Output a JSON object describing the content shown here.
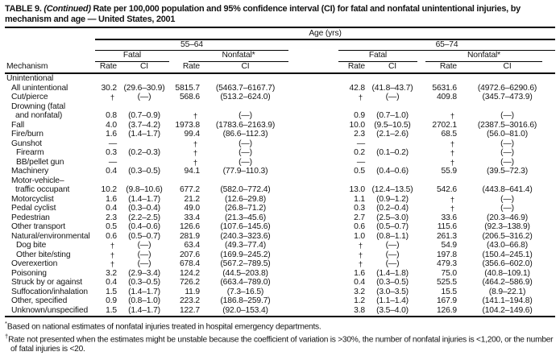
{
  "title": {
    "prefix": "TABLE 9. ",
    "continued": "(Continued)",
    "rest": " Rate per 100,000 population and 95% confidence interval (CI) for fatal and nonfatal unintentional injuries, by mechanism and age — United States, 2001"
  },
  "header": {
    "age_label": "Age (yrs)",
    "mechanism_label": "Mechanism",
    "group_1": "55–64",
    "group_2": "65–74",
    "fatal_label": "Fatal",
    "nonfatal_label": "Nonfatal*",
    "rate_label": "Rate",
    "ci_label": "CI"
  },
  "table": {
    "columns": [
      "Mechanism",
      "55-64 Fatal Rate",
      "55-64 Fatal CI",
      "55-64 Nonfatal Rate",
      "55-64 Nonfatal CI",
      "65-74 Fatal Rate",
      "65-74 Fatal CI",
      "65-74 Nonfatal Rate",
      "65-74 Nonfatal CI"
    ],
    "rows": [
      {
        "label_lines": [
          "Unintentional"
        ],
        "indent": 0,
        "section": true,
        "cells": [
          "",
          "",
          "",
          "",
          "",
          "",
          "",
          ""
        ]
      },
      {
        "label_lines": [
          "All unintentional"
        ],
        "indent": 1,
        "cells": [
          "30.2",
          "(29.6–30.9)",
          "5815.7",
          "(5463.7–6167.7)",
          "42.8",
          "(41.8–43.7)",
          "5631.6",
          "(4972.6–6290.6)"
        ]
      },
      {
        "label_lines": [
          "Cut/pierce"
        ],
        "indent": 1,
        "cells": [
          "†",
          "(—)",
          "568.6",
          "(513.2–624.0)",
          "†",
          "(—)",
          "409.8",
          "(345.7–473.9)"
        ]
      },
      {
        "label_lines": [
          "Drowning (fatal",
          "and nonfatal)"
        ],
        "indent": 1,
        "cells": [
          "0.8",
          "(0.7–0.9)",
          "†",
          "(—)",
          "0.9",
          "(0.7–1.0)",
          "†",
          "(—)"
        ]
      },
      {
        "label_lines": [
          "Fall"
        ],
        "indent": 1,
        "cells": [
          "4.0",
          "(3.7–4.2)",
          "1973.8",
          "(1783.6–2163.9)",
          "10.0",
          "(9.5–10.5)",
          "2702.1",
          "(2387.5–3016.6)"
        ]
      },
      {
        "label_lines": [
          "Fire/burn"
        ],
        "indent": 1,
        "cells": [
          "1.6",
          "(1.4–1.7)",
          "99.4",
          "(86.6–112.3)",
          "2.3",
          "(2.1–2.6)",
          "68.5",
          "(56.0–81.0)"
        ]
      },
      {
        "label_lines": [
          "Gunshot"
        ],
        "indent": 1,
        "cells": [
          "—",
          "",
          "†",
          "(—)",
          "—",
          "",
          "†",
          "(—)"
        ]
      },
      {
        "label_lines": [
          "Firearm"
        ],
        "indent": 2,
        "cells": [
          "0.3",
          "(0.2–0.3)",
          "†",
          "(—)",
          "0.2",
          "(0.1–0.2)",
          "†",
          "(—)"
        ]
      },
      {
        "label_lines": [
          "BB/pellet gun"
        ],
        "indent": 2,
        "cells": [
          "—",
          "",
          "†",
          "(—)",
          "—",
          "",
          "†",
          "(—)"
        ]
      },
      {
        "label_lines": [
          "Machinery"
        ],
        "indent": 1,
        "cells": [
          "0.4",
          "(0.3–0.5)",
          "94.1",
          "(77.9–110.3)",
          "0.5",
          "(0.4–0.6)",
          "55.9",
          "(39.5–72.3)"
        ]
      },
      {
        "label_lines": [
          "Motor-vehicle–",
          "traffic occupant"
        ],
        "indent": 1,
        "cells": [
          "10.2",
          "(9.8–10.6)",
          "677.2",
          "(582.0–772.4)",
          "13.0",
          "(12.4–13.5)",
          "542.6",
          "(443.8–641.4)"
        ]
      },
      {
        "label_lines": [
          "Motorcyclist"
        ],
        "indent": 1,
        "cells": [
          "1.6",
          "(1.4–1.7)",
          "21.2",
          "(12.6–29.8)",
          "1.1",
          "(0.9–1.2)",
          "†",
          "(—)"
        ]
      },
      {
        "label_lines": [
          "Pedal cyclist"
        ],
        "indent": 1,
        "cells": [
          "0.4",
          "(0.3–0.4)",
          "49.0",
          "(26.8–71.2)",
          "0.3",
          "(0.2–0.4)",
          "†",
          "(—)"
        ]
      },
      {
        "label_lines": [
          "Pedestrian"
        ],
        "indent": 1,
        "cells": [
          "2.3",
          "(2.2–2.5)",
          "33.4",
          "(21.3–45.6)",
          "2.7",
          "(2.5–3.0)",
          "33.6",
          "(20.3–46.9)"
        ]
      },
      {
        "label_lines": [
          "Other transport"
        ],
        "indent": 1,
        "cells": [
          "0.5",
          "(0.4–0.6)",
          "126.6",
          "(107.6–145.6)",
          "0.6",
          "(0.5–0.7)",
          "115.6",
          "(92.3–138.9)"
        ]
      },
      {
        "label_lines": [
          "Natural/environmental"
        ],
        "indent": 1,
        "cells": [
          "0.6",
          "(0.5–0.7)",
          "281.9",
          "(240.3–323.6)",
          "1.0",
          "(0.8–1.1)",
          "261.3",
          "(206.5–316.2)"
        ]
      },
      {
        "label_lines": [
          "Dog bite"
        ],
        "indent": 2,
        "cells": [
          "†",
          "(—)",
          "63.4",
          "(49.3–77.4)",
          "†",
          "(—)",
          "54.9",
          "(43.0–66.8)"
        ]
      },
      {
        "label_lines": [
          "Other bite/sting"
        ],
        "indent": 2,
        "cells": [
          "†",
          "(—)",
          "207.6",
          "(169.9–245.2)",
          "†",
          "(—)",
          "197.8",
          "(150.4–245.1)"
        ]
      },
      {
        "label_lines": [
          "Overexertion"
        ],
        "indent": 1,
        "cells": [
          "†",
          "(—)",
          "678.4",
          "(567.2–789.5)",
          "†",
          "(—)",
          "479.3",
          "(356.6–602.0)"
        ]
      },
      {
        "label_lines": [
          "Poisoning"
        ],
        "indent": 1,
        "cells": [
          "3.2",
          "(2.9–3.4)",
          "124.2",
          "(44.5–203.8)",
          "1.6",
          "(1.4–1.8)",
          "75.0",
          "(40.8–109.1)"
        ]
      },
      {
        "label_lines": [
          "Struck by or against"
        ],
        "indent": 1,
        "cells": [
          "0.4",
          "(0.3–0.5)",
          "726.2",
          "(663.4–789.0)",
          "0.4",
          "(0.3–0.5)",
          "525.5",
          "(464.2–586.9)"
        ]
      },
      {
        "label_lines": [
          "Suffocation/inhalation"
        ],
        "indent": 1,
        "cells": [
          "1.5",
          "(1.4–1.7)",
          "11.9",
          "(7.3–16.5)",
          "3.2",
          "(3.0–3.5)",
          "15.5",
          "(8.9–22.1)"
        ]
      },
      {
        "label_lines": [
          "Other, specified"
        ],
        "indent": 1,
        "cells": [
          "0.9",
          "(0.8–1.0)",
          "223.2",
          "(186.8–259.7)",
          "1.2",
          "(1.1–1.4)",
          "167.9",
          "(141.1–194.8)"
        ]
      },
      {
        "label_lines": [
          "Unknown/unspecified"
        ],
        "indent": 1,
        "cells": [
          "1.5",
          "(1.4–1.7)",
          "122.7",
          "(92.0–153.4)",
          "3.8",
          "(3.5–4.0)",
          "126.9",
          "(104.2–149.6)"
        ]
      }
    ]
  },
  "footnotes": [
    {
      "symbol": "*",
      "text": "Based on national estimates of nonfatal injuries treated in hospital emergency departments."
    },
    {
      "symbol": "†",
      "text": "Rate not presented when the estimates might be unstable because the coefficient of variation is >30%, the number of nonfatal injuries is <1,200, or the number of fatal injuries is <20."
    }
  ]
}
